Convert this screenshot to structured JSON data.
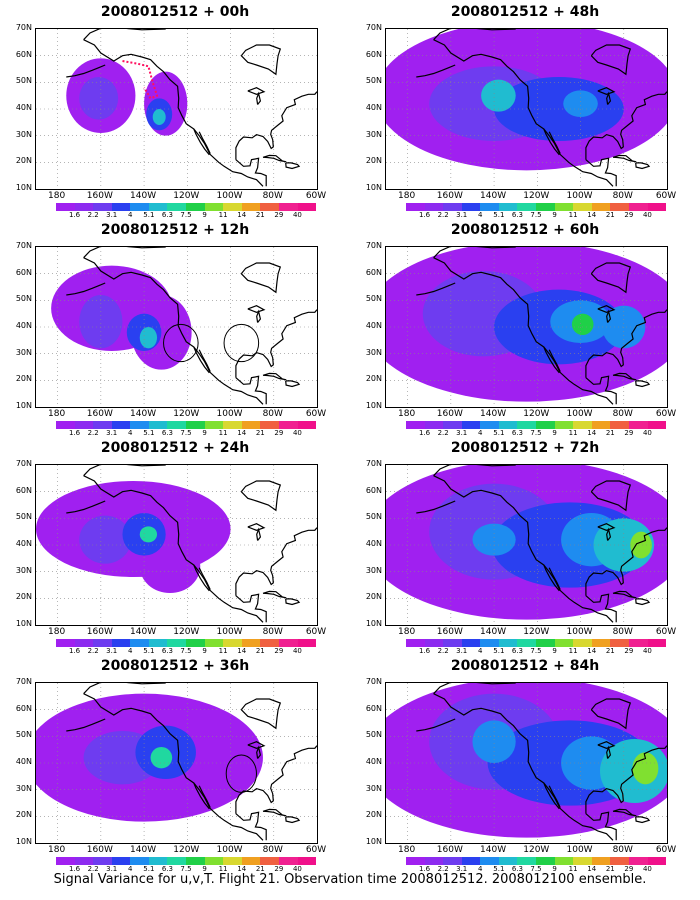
{
  "panels": [
    {
      "title": "2008012512 + 00h",
      "lead_hours": 0,
      "obs_circles": 0,
      "flight_track_shown": true,
      "max_level": 6
    },
    {
      "title": "2008012512 + 48h",
      "lead_hours": 48,
      "obs_circles": 0,
      "flight_track_shown": false,
      "max_level": 7
    },
    {
      "title": "2008012512 + 12h",
      "lead_hours": 12,
      "obs_circles": 2,
      "flight_track_shown": false,
      "max_level": 6
    },
    {
      "title": "2008012512 + 60h",
      "lead_hours": 60,
      "obs_circles": 0,
      "flight_track_shown": false,
      "max_level": 9
    },
    {
      "title": "2008012512 + 24h",
      "lead_hours": 24,
      "obs_circles": 0,
      "flight_track_shown": false,
      "max_level": 7
    },
    {
      "title": "2008012512 + 72h",
      "lead_hours": 72,
      "obs_circles": 0,
      "flight_track_shown": false,
      "max_level": 10
    },
    {
      "title": "2008012512 + 36h",
      "lead_hours": 36,
      "obs_circles": 1,
      "flight_track_shown": false,
      "max_level": 7
    },
    {
      "title": "2008012512 + 84h",
      "lead_hours": 84,
      "obs_circles": 0,
      "flight_track_shown": false,
      "max_level": 10
    }
  ],
  "axes": {
    "lat_labels": [
      "70N",
      "60N",
      "50N",
      "40N",
      "30N",
      "20N",
      "10N"
    ],
    "lon_labels": [
      "180",
      "160W",
      "140W",
      "120W",
      "100W",
      "80W",
      "60W"
    ],
    "lat_range": [
      10,
      70
    ],
    "lon_range": [
      -190,
      -60
    ],
    "grid": "dotted"
  },
  "colorbar": {
    "levels": [
      "1.6",
      "2.2",
      "3.1",
      "4",
      "5.1",
      "6.3",
      "7.5",
      "9",
      "11",
      "14",
      "21",
      "29",
      "40"
    ],
    "colors": [
      "#a020f0",
      "#8d2bf0",
      "#6e3cf0",
      "#2a40f0",
      "#1e8cf0",
      "#20bcd0",
      "#20d8a0",
      "#20d048",
      "#80e030",
      "#d8d830",
      "#f0a020",
      "#f06040",
      "#f02090",
      "#f0108a"
    ]
  },
  "caption": "Signal Variance for u,v,T. Flight 21. Observation time 2008012512. 2008012100 ensemble."
}
